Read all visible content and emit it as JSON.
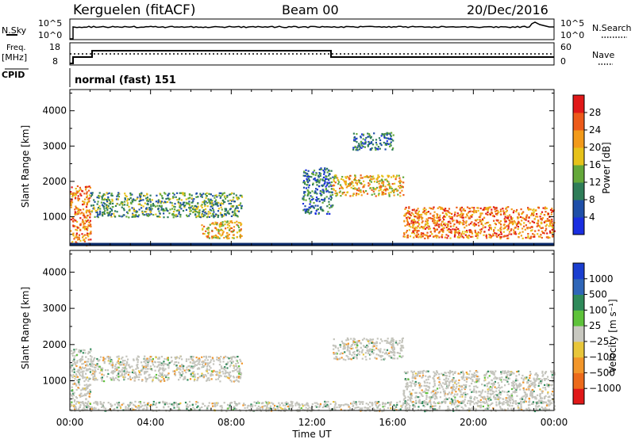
{
  "header": {
    "station": "Kerguelen (fitACF)",
    "beam": "Beam 00",
    "date": "20/Dec/2016"
  },
  "noise_panel": {
    "left_label": "N.Sky",
    "right_label": "N.Search",
    "left_ticks": [
      "10^5",
      "10^0"
    ],
    "right_ticks": [
      "10^5",
      "10^0"
    ]
  },
  "freq_panel": {
    "left_label": "Freq.",
    "left_unit": "[MHz]",
    "left_ticks": [
      "18",
      "8"
    ],
    "right_label": "Nave",
    "right_ticks": [
      "60",
      "0"
    ],
    "cpid_label": "CPID",
    "cpid_value": "normal (fast) 151"
  },
  "time_axis": {
    "label": "Time UT",
    "ticks": [
      "00:00",
      "04:00",
      "08:00",
      "12:00",
      "16:00",
      "20:00",
      "00:00"
    ]
  },
  "range_axis": {
    "label": "Slant Range [km]",
    "ticks": [
      "1000",
      "2000",
      "3000",
      "4000"
    ]
  },
  "power_scale": {
    "label": "Power [dB]",
    "ticks": [
      "4",
      "8",
      "12",
      "16",
      "20",
      "24",
      "28"
    ],
    "colors": [
      "#1a2ee0",
      "#1f4fa8",
      "#2f7d58",
      "#64a83a",
      "#e6c21a",
      "#f29a1a",
      "#ec5a1a",
      "#e01818"
    ]
  },
  "velocity_scale": {
    "label": "Velocity [m s⁻¹]",
    "ticks": [
      "1000",
      "500",
      "100",
      "25",
      "−25",
      "−100",
      "−500",
      "−1000"
    ],
    "colors": [
      "#1a3ed0",
      "#2f66b8",
      "#2f8a5a",
      "#5ec23a",
      "#c8c8c0",
      "#e8c63a",
      "#f2962a",
      "#ec6a1a",
      "#e01818"
    ]
  },
  "chart_data": [
    {
      "type": "heatmap",
      "title": "Power",
      "xlabel": "Time UT",
      "ylabel": "Slant Range [km]",
      "xlim": [
        "00:00",
        "24:00"
      ],
      "ylim": [
        180,
        4600
      ],
      "zlabel": "Power [dB]",
      "zlim": [
        0,
        32
      ],
      "regions": [
        {
          "t": [
            0.0,
            1.0
          ],
          "r": [
            200,
            1900
          ],
          "value": 24
        },
        {
          "t": [
            1.0,
            8.5
          ],
          "r": [
            1000,
            1700
          ],
          "value": 12
        },
        {
          "t": [
            6.5,
            8.5
          ],
          "r": [
            400,
            900
          ],
          "value": 20
        },
        {
          "t": [
            11.5,
            13.0
          ],
          "r": [
            1100,
            2400
          ],
          "value": 8
        },
        {
          "t": [
            13.0,
            16.5
          ],
          "r": [
            1600,
            2200
          ],
          "value": 20
        },
        {
          "t": [
            14.0,
            16.0
          ],
          "r": [
            2900,
            3400
          ],
          "value": 8
        },
        {
          "t": [
            16.5,
            24.0
          ],
          "r": [
            400,
            1300
          ],
          "value": 24
        }
      ]
    },
    {
      "type": "heatmap",
      "title": "Velocity",
      "xlabel": "Time UT",
      "ylabel": "Slant Range [km]",
      "xlim": [
        "00:00",
        "24:00"
      ],
      "ylim": [
        180,
        4600
      ],
      "zlabel": "Velocity [m s⁻¹]",
      "zlim": [
        -1000,
        1000
      ],
      "regions": [
        {
          "t": [
            0.0,
            1.0
          ],
          "r": [
            200,
            1900
          ],
          "value": 0
        },
        {
          "t": [
            1.0,
            8.5
          ],
          "r": [
            1000,
            1700
          ],
          "value": 0
        },
        {
          "t": [
            13.0,
            16.5
          ],
          "r": [
            1600,
            2200
          ],
          "value": 0
        },
        {
          "t": [
            16.5,
            24.0
          ],
          "r": [
            400,
            1300
          ],
          "value": 0
        },
        {
          "t": [
            0.0,
            24.0
          ],
          "r": [
            180,
            450
          ],
          "value": 100
        }
      ]
    }
  ]
}
